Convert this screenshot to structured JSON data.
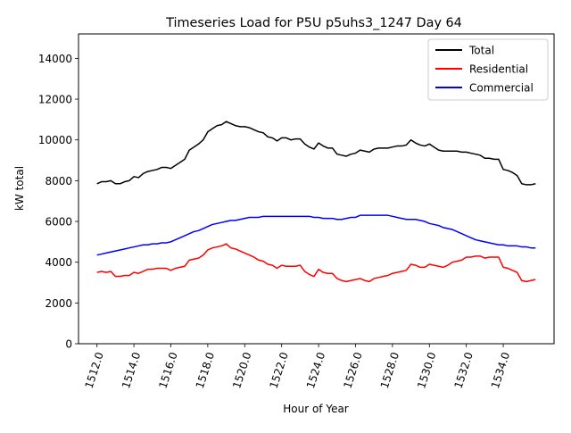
{
  "chart_data": {
    "type": "line",
    "title": "Timeseries Load for P5U p5uhs3_1247  Day 64",
    "xlabel": "Hour of Year",
    "ylabel": "kW total",
    "xlim": [
      1511.0,
      1536.75
    ],
    "ylim": [
      0,
      15200
    ],
    "x_ticks": [
      1512.0,
      1514.0,
      1516.0,
      1518.0,
      1520.0,
      1522.0,
      1524.0,
      1526.0,
      1528.0,
      1530.0,
      1532.0,
      1534.0
    ],
    "x_tick_labels": [
      "1512.0",
      "1514.0",
      "1516.0",
      "1518.0",
      "1520.0",
      "1522.0",
      "1524.0",
      "1526.0",
      "1528.0",
      "1530.0",
      "1532.0",
      "1534.0"
    ],
    "y_ticks": [
      0,
      2000,
      4000,
      6000,
      8000,
      10000,
      12000,
      14000
    ],
    "y_tick_labels": [
      "0",
      "2000",
      "4000",
      "6000",
      "8000",
      "10000",
      "12000",
      "14000"
    ],
    "grid": false,
    "legend_position": "top-right",
    "x": {
      "start": 1512.0,
      "step": 0.25,
      "count": 96
    },
    "series": [
      {
        "name": "Total",
        "color": "#000000",
        "values": [
          7850,
          7950,
          7950,
          8000,
          7850,
          7850,
          7950,
          8000,
          8200,
          8150,
          8350,
          8450,
          8500,
          8550,
          8650,
          8650,
          8600,
          8750,
          8900,
          9050,
          9500,
          9650,
          9800,
          10000,
          10400,
          10550,
          10700,
          10750,
          10900,
          10800,
          10700,
          10650,
          10650,
          10600,
          10500,
          10400,
          10350,
          10150,
          10100,
          9950,
          10100,
          10100,
          10000,
          10050,
          10050,
          9800,
          9650,
          9550,
          9850,
          9700,
          9600,
          9600,
          9300,
          9250,
          9200,
          9300,
          9350,
          9500,
          9450,
          9400,
          9550,
          9600,
          9600,
          9600,
          9650,
          9700,
          9700,
          9750,
          10000,
          9850,
          9750,
          9700,
          9800,
          9650,
          9500,
          9450,
          9450,
          9450,
          9450,
          9400,
          9400,
          9350,
          9300,
          9250,
          9100,
          9100,
          9050,
          9050,
          8550,
          8500,
          8400,
          8250,
          7850,
          7800,
          7800,
          7850
        ]
      },
      {
        "name": "Residential",
        "color": "#ff0000",
        "values": [
          3500,
          3550,
          3500,
          3550,
          3300,
          3300,
          3350,
          3350,
          3500,
          3450,
          3550,
          3650,
          3650,
          3700,
          3700,
          3700,
          3600,
          3700,
          3750,
          3800,
          4100,
          4150,
          4200,
          4350,
          4600,
          4700,
          4750,
          4800,
          4900,
          4700,
          4650,
          4550,
          4450,
          4350,
          4250,
          4100,
          4050,
          3900,
          3850,
          3700,
          3850,
          3800,
          3800,
          3800,
          3850,
          3550,
          3400,
          3300,
          3650,
          3500,
          3450,
          3450,
          3200,
          3100,
          3050,
          3100,
          3150,
          3200,
          3100,
          3050,
          3200,
          3250,
          3300,
          3350,
          3450,
          3500,
          3550,
          3600,
          3900,
          3850,
          3750,
          3750,
          3900,
          3850,
          3800,
          3750,
          3850,
          4000,
          4050,
          4100,
          4250,
          4250,
          4300,
          4300,
          4200,
          4250,
          4250,
          4250,
          3750,
          3700,
          3600,
          3500,
          3100,
          3050,
          3100,
          3150
        ]
      },
      {
        "name": "Commercial",
        "color": "#0000ff",
        "values": [
          4350,
          4400,
          4450,
          4500,
          4550,
          4600,
          4650,
          4700,
          4750,
          4800,
          4850,
          4850,
          4900,
          4900,
          4950,
          4950,
          5000,
          5100,
          5200,
          5300,
          5400,
          5500,
          5550,
          5650,
          5750,
          5850,
          5900,
          5950,
          6000,
          6050,
          6050,
          6100,
          6150,
          6200,
          6200,
          6200,
          6250,
          6250,
          6250,
          6250,
          6250,
          6250,
          6250,
          6250,
          6250,
          6250,
          6250,
          6200,
          6200,
          6150,
          6150,
          6150,
          6100,
          6100,
          6150,
          6200,
          6200,
          6300,
          6300,
          6300,
          6300,
          6300,
          6300,
          6300,
          6250,
          6200,
          6150,
          6100,
          6100,
          6100,
          6050,
          6000,
          5900,
          5850,
          5800,
          5700,
          5650,
          5600,
          5500,
          5400,
          5300,
          5200,
          5100,
          5050,
          5000,
          4950,
          4900,
          4850,
          4850,
          4800,
          4800,
          4800,
          4750,
          4750,
          4700,
          4700
        ]
      }
    ]
  }
}
